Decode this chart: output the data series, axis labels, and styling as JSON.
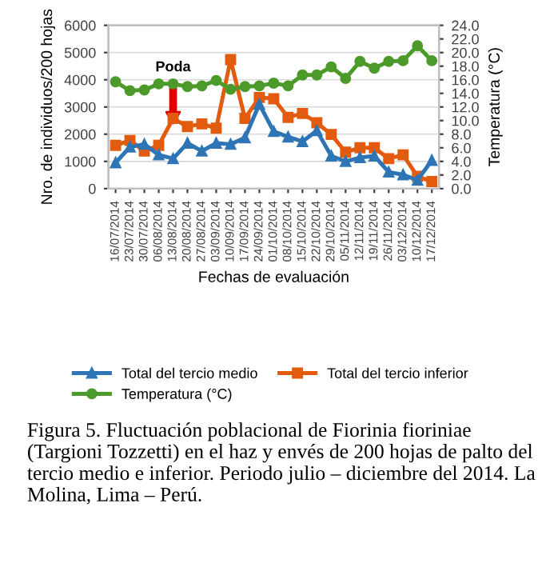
{
  "chart_data": {
    "type": "line",
    "categories": [
      "16/07/2014",
      "23/07/2014",
      "30/07/2014",
      "06/08/2014",
      "13/08/2014",
      "20/08/2014",
      "27/08/2014",
      "03/09/2014",
      "10/09/2014",
      "17/09/2014",
      "24/09/2014",
      "01/10/2014",
      "08/10/2014",
      "15/10/2014",
      "22/10/2014",
      "29/10/2014",
      "05/11/2014",
      "12/11/2014",
      "19/11/2014",
      "26/11/2014",
      "03/12/2014",
      "10/12/2014",
      "17/12/2014"
    ],
    "series": [
      {
        "name": "Total del tercio medio",
        "color": "#2e75b6",
        "marker": "triangle",
        "values": [
          950,
          1530,
          1630,
          1240,
          1100,
          1670,
          1380,
          1670,
          1630,
          1870,
          3100,
          2100,
          1900,
          1730,
          2130,
          1200,
          1000,
          1140,
          1200,
          610,
          510,
          310,
          1040
        ]
      },
      {
        "name": "Total del tercio inferior",
        "color": "#e35b0e",
        "marker": "square",
        "values": [
          1590,
          1770,
          1380,
          1590,
          2580,
          2280,
          2380,
          2220,
          4740,
          2580,
          3350,
          3300,
          2620,
          2760,
          2420,
          1990,
          1340,
          1500,
          1500,
          1100,
          1240,
          450,
          260
        ]
      },
      {
        "name": "Temperatura (°C)",
        "color": "#4c9a2a",
        "marker": "circle",
        "axis": "y2",
        "values": [
          15.7,
          14.4,
          14.5,
          15.4,
          15.4,
          15.0,
          15.1,
          15.9,
          14.6,
          15.0,
          15.1,
          15.5,
          15.1,
          16.7,
          16.7,
          17.9,
          16.2,
          18.7,
          17.7,
          18.7,
          18.8,
          21.0,
          18.8
        ]
      }
    ],
    "xlabel": "Fechas de evaluación",
    "ylabel": "Nro. de individuos/200 hojas",
    "y2label": "Temperatura (°C)",
    "ylim": [
      0,
      6000
    ],
    "yticks": [
      0,
      1000,
      2000,
      3000,
      4000,
      5000,
      6000
    ],
    "y2lim": [
      0,
      24
    ],
    "y2ticks": [
      {
        "value": 0,
        "label": "0.0"
      },
      {
        "value": 2,
        "label": "2.0"
      },
      {
        "value": 4,
        "label": "4.0"
      },
      {
        "value": 6,
        "label": "6.0"
      },
      {
        "value": 8,
        "label": "8.0"
      },
      {
        "value": 10,
        "label": "10.0"
      },
      {
        "value": 12,
        "label": "12.0"
      },
      {
        "value": 14,
        "label": "14.0"
      },
      {
        "value": 16,
        "label": "16.0"
      },
      {
        "value": 18,
        "label": "18.0"
      },
      {
        "value": 20,
        "label": "20.0"
      },
      {
        "value": 22,
        "label": "22.0"
      },
      {
        "value": 24,
        "label": "24.0"
      }
    ],
    "grid": "y",
    "legend": "bottom",
    "annotations": [
      {
        "text": "Poda",
        "x": "13/08/2014",
        "y": 4200
      },
      "Figura 5. Fluctuación poblacional de Fiorinia fioriniae (Targioni Tozzetti) en el haz y envés de 200 hojas de palto del tercio medio e inferior. Periodo julio – diciembre del 2014. La Molina, Lima – Perú."
    ]
  }
}
